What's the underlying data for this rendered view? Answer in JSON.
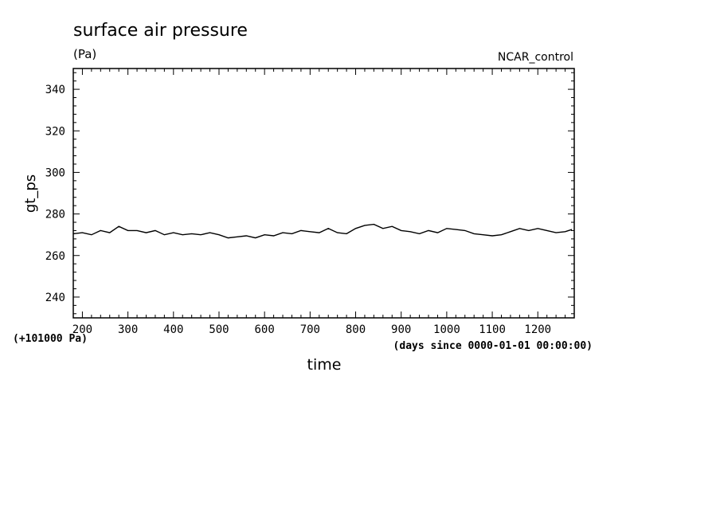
{
  "chart_data": {
    "type": "line",
    "title": "surface air pressure",
    "units": "(Pa)",
    "experiment": "NCAR_control",
    "xlabel": "time",
    "x_units": "(days since 0000-01-01 00:00:00)",
    "ylabel": "gt_ps",
    "y_offset_label": "(+101000 Pa)",
    "xlim": [
      180,
      1280
    ],
    "ylim": [
      230,
      350
    ],
    "x_ticks": [
      200,
      300,
      400,
      500,
      600,
      700,
      800,
      900,
      1000,
      1100,
      1200
    ],
    "y_ticks": [
      240,
      260,
      280,
      300,
      320,
      340
    ],
    "x_tick_labels": [
      "200",
      "300",
      "400",
      "500",
      "600",
      "700",
      "800",
      "900",
      "1000",
      "1100",
      "1200"
    ],
    "y_tick_labels": [
      "240",
      "260",
      "280",
      "300",
      "320",
      "340"
    ],
    "series": [
      {
        "x": [
          180,
          200,
          220,
          240,
          260,
          280,
          300,
          320,
          340,
          360,
          380,
          400,
          420,
          440,
          460,
          480,
          500,
          520,
          540,
          560,
          580,
          600,
          620,
          640,
          660,
          680,
          700,
          720,
          740,
          760,
          780,
          800,
          820,
          840,
          860,
          880,
          900,
          920,
          940,
          960,
          980,
          1000,
          1020,
          1040,
          1060,
          1080,
          1100,
          1120,
          1140,
          1160,
          1180,
          1200,
          1220,
          1240,
          1260,
          1275
        ],
        "y": [
          270.5,
          271,
          270,
          272,
          271,
          274,
          272,
          272,
          271,
          272,
          270,
          271,
          270,
          270.5,
          270,
          271,
          270,
          268.5,
          269,
          269.5,
          268.5,
          270,
          269.5,
          271,
          270.5,
          272,
          271.5,
          271,
          273,
          271,
          270.5,
          273,
          274.5,
          275,
          273,
          274,
          272,
          271.5,
          270.5,
          272,
          271,
          273,
          272.5,
          272,
          270.5,
          270,
          269.5,
          270,
          271.5,
          273,
          272,
          273,
          272,
          271,
          271.5,
          272.5
        ]
      }
    ]
  }
}
